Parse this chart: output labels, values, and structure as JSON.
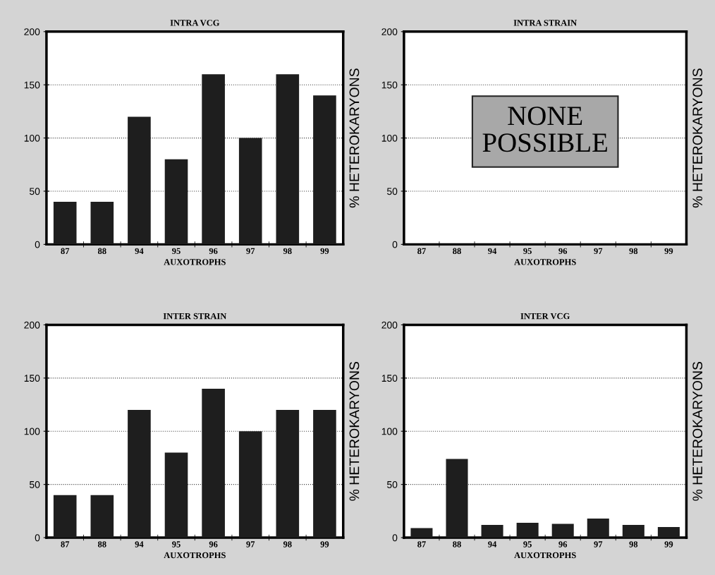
{
  "chart_data": [
    {
      "type": "bar",
      "title": "INTRA VCG",
      "xlabel": "AUXOTROPHS",
      "ylabel": "% HETEROKARYONS",
      "categories": [
        "87",
        "88",
        "94",
        "95",
        "96",
        "97",
        "98",
        "99"
      ],
      "values": [
        40,
        40,
        120,
        80,
        160,
        100,
        160,
        140
      ],
      "color": "#1e1e1e",
      "ylim": [
        0,
        200
      ],
      "yticks": [
        0,
        50,
        100,
        150,
        200
      ],
      "grid": "y"
    },
    {
      "type": "bar",
      "title": "INTRA STRAIN",
      "xlabel": "AUXOTROPHS",
      "ylabel": "% HETEROKARYONS",
      "categories": [
        "87",
        "88",
        "94",
        "95",
        "96",
        "97",
        "98",
        "99"
      ],
      "values": [
        null,
        null,
        null,
        null,
        null,
        null,
        null,
        null
      ],
      "color": "#1e1e1e",
      "ylim": [
        0,
        200
      ],
      "yticks": [
        0,
        50,
        100,
        150,
        200
      ],
      "grid": "y",
      "annotations": [
        "NONE\nPOSSIBLE"
      ]
    },
    {
      "type": "bar",
      "title": "INTER STRAIN",
      "xlabel": "AUXOTROPHS",
      "ylabel": "% HETEROKARYONS",
      "categories": [
        "87",
        "88",
        "94",
        "95",
        "96",
        "97",
        "98",
        "99"
      ],
      "values": [
        40,
        40,
        120,
        80,
        140,
        100,
        120,
        120
      ],
      "color": "#1e1e1e",
      "ylim": [
        0,
        200
      ],
      "yticks": [
        0,
        50,
        100,
        150,
        200
      ],
      "grid": "y"
    },
    {
      "type": "bar",
      "title": "INTER VCG",
      "xlabel": "AUXOTROPHS",
      "ylabel": "% HETEROKARYONS",
      "categories": [
        "87",
        "88",
        "94",
        "95",
        "96",
        "97",
        "98",
        "99"
      ],
      "values": [
        9,
        74,
        12,
        14,
        13,
        18,
        12,
        10
      ],
      "color": "#1e1e1e",
      "ylim": [
        0,
        200
      ],
      "yticks": [
        0,
        50,
        100,
        150,
        200
      ],
      "grid": "y"
    }
  ]
}
